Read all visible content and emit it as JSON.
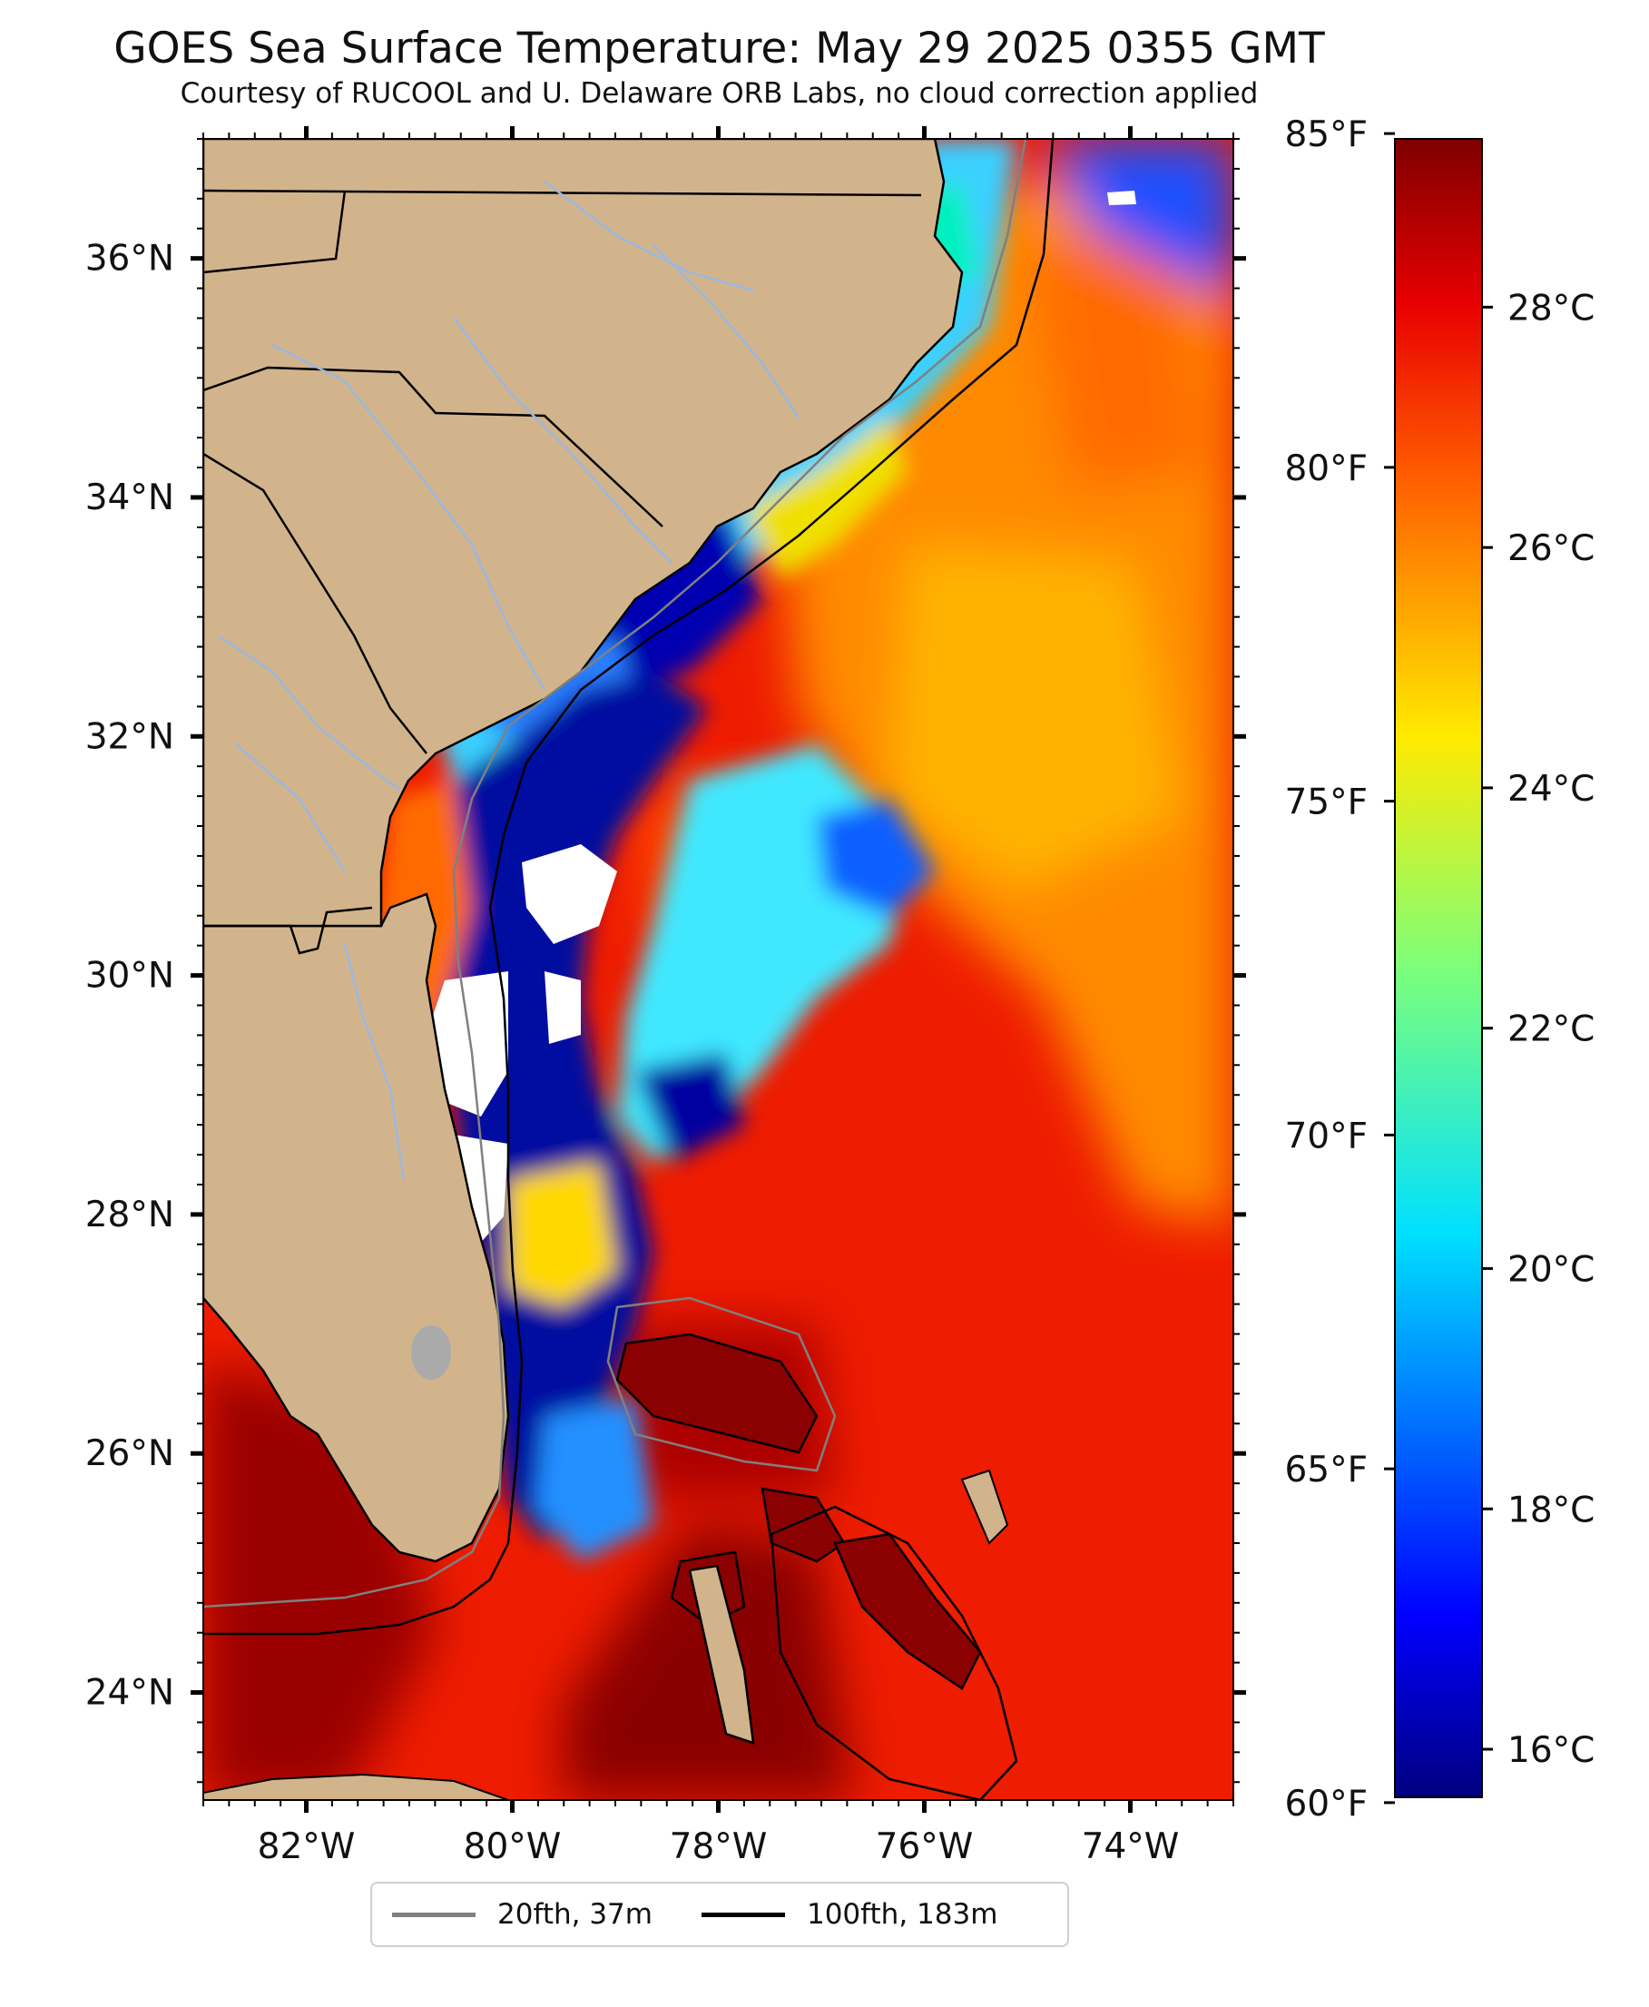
{
  "title": "GOES Sea Surface Temperature: May 29 2025 0355 GMT",
  "subtitle": "Courtesy of RUCOOL and U. Delaware ORB Labs, no cloud correction applied",
  "map": {
    "lon_range": [
      -83.0,
      -73.0
    ],
    "lat_range": [
      23.1,
      37.0
    ],
    "lon_ticks": [
      {
        "value": -82,
        "label": "82°W"
      },
      {
        "value": -80,
        "label": "80°W"
      },
      {
        "value": -78,
        "label": "78°W"
      },
      {
        "value": -76,
        "label": "76°W"
      },
      {
        "value": -74,
        "label": "74°W"
      }
    ],
    "lat_ticks": [
      {
        "value": 24,
        "label": "24°N"
      },
      {
        "value": 26,
        "label": "26°N"
      },
      {
        "value": 28,
        "label": "28°N"
      },
      {
        "value": 30,
        "label": "30°N"
      },
      {
        "value": 32,
        "label": "32°N"
      },
      {
        "value": 34,
        "label": "34°N"
      },
      {
        "value": 36,
        "label": "36°N"
      }
    ],
    "colors": {
      "land": "#d2b48c",
      "coast": "#000000",
      "rivers": "#9ab8e0",
      "lake": "#aaaaaa",
      "cloud_mask": "#ffffff"
    }
  },
  "colorbar": {
    "colormap": "jet",
    "range_c": [
      15.6,
      29.4
    ],
    "celsius_ticks": [
      {
        "value": 16,
        "label": "16°C"
      },
      {
        "value": 18,
        "label": "18°C"
      },
      {
        "value": 20,
        "label": "20°C"
      },
      {
        "value": 22,
        "label": "22°C"
      },
      {
        "value": 24,
        "label": "24°C"
      },
      {
        "value": 26,
        "label": "26°C"
      },
      {
        "value": 28,
        "label": "28°C"
      }
    ],
    "fahrenheit_ticks": [
      {
        "value": 60,
        "label": "60°F"
      },
      {
        "value": 65,
        "label": "65°F"
      },
      {
        "value": 70,
        "label": "70°F"
      },
      {
        "value": 75,
        "label": "75°F"
      },
      {
        "value": 80,
        "label": "80°F"
      },
      {
        "value": 85,
        "label": "85°F"
      }
    ]
  },
  "legend": [
    {
      "label": "20fth, 37m",
      "color": "#808080"
    },
    {
      "label": "100fth, 183m",
      "color": "#000000"
    }
  ]
}
